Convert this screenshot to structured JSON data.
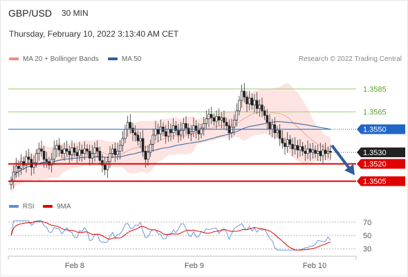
{
  "header": {
    "pair": "GBP/USD",
    "timeframe": "30 MIN",
    "timestamp": "Thursday, February 10, 2022 3:13:40 AM CET"
  },
  "legend": {
    "ma20_label": "MA 20 + Bollinger Bands",
    "ma50_label": "MA 50",
    "ma20_color": "#f28b82",
    "ma50_color": "#2f5d9e",
    "credit": "Research © 2022 Trading Central"
  },
  "rsi_legend": {
    "rsi_label": "RSI",
    "ma_label": "9MA",
    "rsi_color": "#5b8dd6",
    "ma_color": "#e00000"
  },
  "chart_data": {
    "type": "candlestick",
    "title": "GBP/USD",
    "x_ticks": [
      "Feb 8",
      "Feb 9",
      "Feb 10"
    ],
    "ylim": [
      1.3494,
      1.3602
    ],
    "resistance_lines": [
      1.3585,
      1.3565
    ],
    "levels": [
      {
        "value": 1.355,
        "label": "1.3550",
        "color": "#2166c6",
        "kind": "ma50"
      },
      {
        "value": 1.353,
        "label": "1.3530",
        "color": "#222222",
        "kind": "current"
      },
      {
        "value": 1.352,
        "label": "1.3520",
        "color": "#e00000",
        "kind": "support"
      },
      {
        "value": 1.3505,
        "label": "1.3505",
        "color": "#e00000",
        "kind": "support"
      }
    ],
    "resistance_labels": [
      "1.3585",
      "1.3565"
    ],
    "resistance_color": "#5aa02c",
    "ohlc_close": [
      1.3505,
      1.3513,
      1.3518,
      1.3516,
      1.3522,
      1.3519,
      1.3526,
      1.3524,
      1.3517,
      1.3521,
      1.3529,
      1.3533,
      1.3531,
      1.3524,
      1.3522,
      1.3519,
      1.3524,
      1.3533,
      1.3536,
      1.3532,
      1.3529,
      1.3533,
      1.3531,
      1.3528,
      1.3534,
      1.353,
      1.3527,
      1.3532,
      1.3529,
      1.3533,
      1.3531,
      1.3525,
      1.3529,
      1.3534,
      1.3531,
      1.3523,
      1.3519,
      1.3515,
      1.3522,
      1.3529,
      1.3533,
      1.3528,
      1.3531,
      1.3536,
      1.3542,
      1.355,
      1.3556,
      1.3551,
      1.3547,
      1.3545,
      1.354,
      1.3542,
      1.3531,
      1.3524,
      1.353,
      1.3537,
      1.3545,
      1.355,
      1.3546,
      1.3552,
      1.3548,
      1.3544,
      1.355,
      1.3547,
      1.3553,
      1.3549,
      1.3545,
      1.3549,
      1.3555,
      1.3551,
      1.3546,
      1.3548,
      1.3553,
      1.3549,
      1.3546,
      1.3551,
      1.3555,
      1.3559,
      1.3563,
      1.356,
      1.3557,
      1.3561,
      1.3558,
      1.356,
      1.3556,
      1.3553,
      1.3547,
      1.3552,
      1.3558,
      1.3566,
      1.3575,
      1.3583,
      1.3578,
      1.3572,
      1.3577,
      1.3571,
      1.3575,
      1.3568,
      1.3571,
      1.3566,
      1.3562,
      1.3556,
      1.355,
      1.3554,
      1.3547,
      1.3549,
      1.3542,
      1.3538,
      1.3535,
      1.3541,
      1.3537,
      1.3533,
      1.3536,
      1.3532,
      1.3535,
      1.3531,
      1.3529,
      1.3533,
      1.353,
      1.3532,
      1.3529,
      1.3531,
      1.3527,
      1.3532,
      1.3529,
      1.3531,
      1.353
    ],
    "rsi": {
      "ticks": [
        70,
        50,
        30
      ],
      "ylim": [
        24,
        76
      ]
    }
  }
}
